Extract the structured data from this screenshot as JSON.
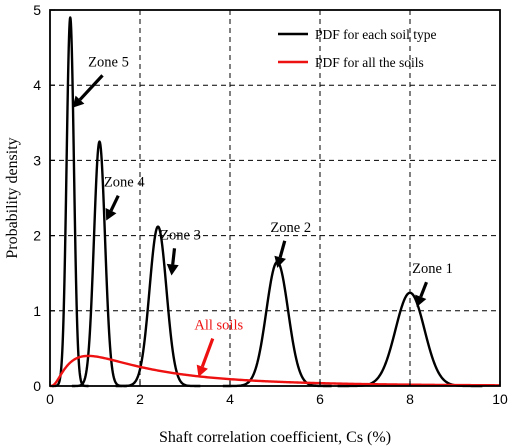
{
  "chart_data": {
    "type": "line",
    "title": "",
    "xlabel": "Shaft correlation coefficient, Cs (%)",
    "ylabel": "Probability density",
    "xlim": [
      0,
      10
    ],
    "ylim": [
      0,
      5
    ],
    "xticks": [
      0,
      2,
      4,
      6,
      8,
      10
    ],
    "yticks": [
      0,
      1,
      2,
      3,
      4,
      5
    ],
    "grid": "dashed",
    "legend_position": "top-right",
    "legend": [
      {
        "label": "PDF for each soil type",
        "color": "#000000"
      },
      {
        "label": "PDF for all the soils",
        "color": "#ee1111"
      }
    ],
    "series": [
      {
        "name": "Zone 5",
        "group": "PDF for each soil type",
        "color": "#000000",
        "mean": 0.45,
        "peak": 4.9
      },
      {
        "name": "Zone 4",
        "group": "PDF for each soil type",
        "color": "#000000",
        "mean": 1.1,
        "peak": 3.25
      },
      {
        "name": "Zone 3",
        "group": "PDF for each soil type",
        "color": "#000000",
        "mean": 2.4,
        "peak": 2.12
      },
      {
        "name": "Zone 2",
        "group": "PDF for each soil type",
        "color": "#000000",
        "mean": 5.05,
        "peak": 1.65
      },
      {
        "name": "Zone 1",
        "group": "PDF for each soil type",
        "color": "#000000",
        "mean": 8.0,
        "peak": 1.24
      },
      {
        "name": "All soils",
        "group": "PDF for all the soils",
        "color": "#ee1111",
        "mode": 0.85,
        "peak": 0.4
      }
    ],
    "annotations": [
      {
        "text": "Zone 5",
        "color": "#000000",
        "x": 1.3,
        "y": 4.25,
        "arrow_to": [
          0.5,
          3.7
        ]
      },
      {
        "text": "Zone 4",
        "color": "#000000",
        "x": 1.65,
        "y": 2.65,
        "arrow_to": [
          1.25,
          2.2
        ]
      },
      {
        "text": "Zone 3",
        "color": "#000000",
        "x": 2.9,
        "y": 1.95,
        "arrow_to": [
          2.7,
          1.47
        ]
      },
      {
        "text": "Zone 2",
        "color": "#000000",
        "x": 5.35,
        "y": 2.05,
        "arrow_to": [
          5.05,
          1.57
        ]
      },
      {
        "text": "Zone 1",
        "color": "#000000",
        "x": 8.5,
        "y": 1.5,
        "arrow_to": [
          8.15,
          1.05
        ]
      },
      {
        "text": "All soils",
        "color": "#ee1111",
        "x": 3.75,
        "y": 0.75,
        "arrow_to": [
          3.3,
          0.12
        ]
      }
    ]
  }
}
